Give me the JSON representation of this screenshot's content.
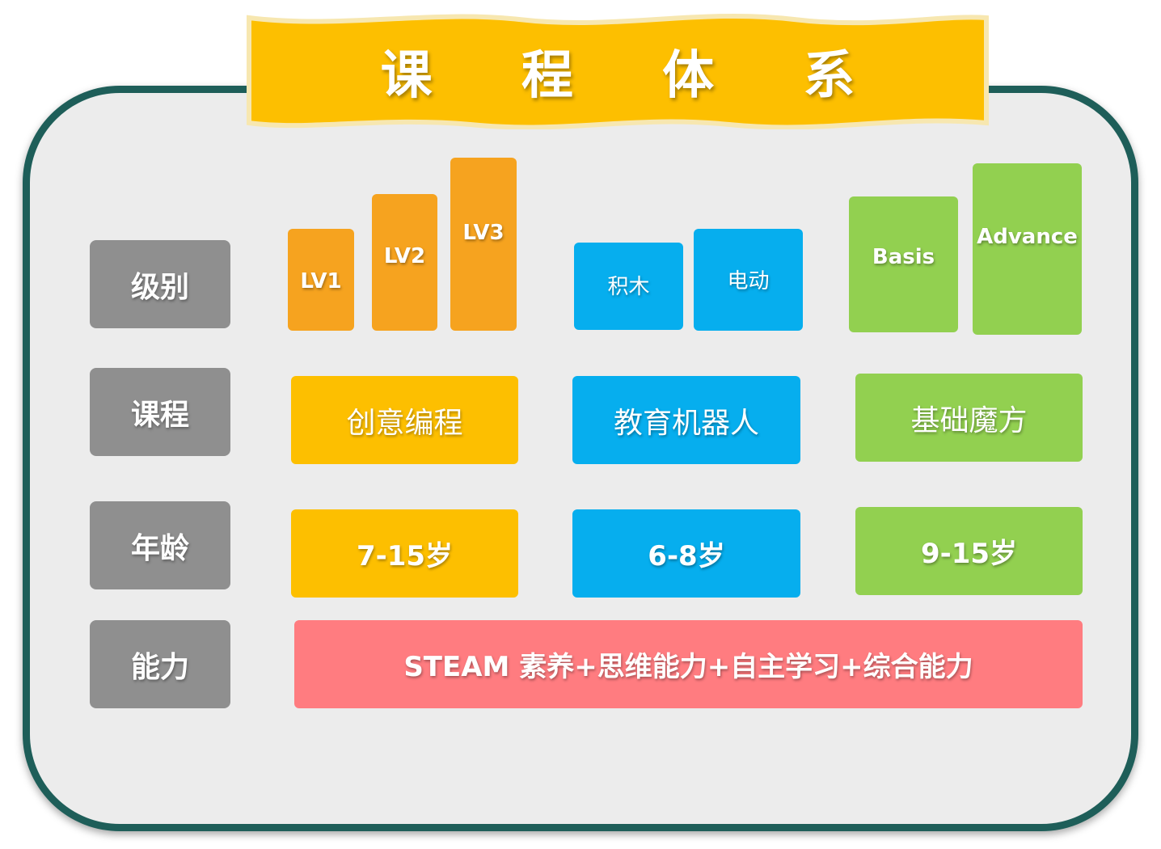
{
  "title": "课 程 体 系",
  "colors": {
    "frame_border": "#1e5e59",
    "frame_fill": "#ececec",
    "banner": "#fdbf00",
    "label_gray": "#8f8f8f",
    "orange": "#f6a31f",
    "yellow": "#fdbf00",
    "blue": "#06aeee",
    "green": "#92d050",
    "pink": "#ff7c80"
  },
  "row_labels": {
    "level": "级别",
    "course": "课程",
    "age": "年龄",
    "ability": "能力"
  },
  "programs": [
    {
      "levels": [
        "LV1",
        "LV2",
        "LV3"
      ],
      "course": "创意编程",
      "age": "7-15岁"
    },
    {
      "levels": [
        "积木",
        "电动"
      ],
      "course": "教育机器人",
      "age": "6-8岁"
    },
    {
      "levels": [
        "Basis",
        "Advance"
      ],
      "course": "基础魔方",
      "age": "9-15岁"
    }
  ],
  "ability": "STEAM 素养+思维能力+自主学习+综合能力"
}
